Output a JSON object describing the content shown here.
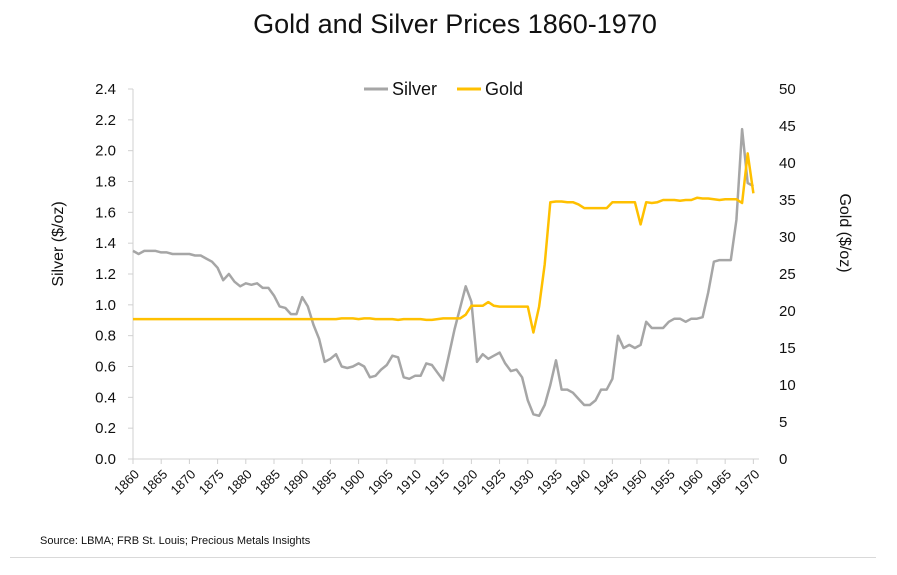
{
  "chart_data": {
    "type": "line",
    "title": "Gold and Silver Prices 1860-1970",
    "ylabel_left": "Silver ($/oz)",
    "ylabel_right": "Gold ($/oz)",
    "ylim_left": [
      0,
      2.4
    ],
    "ylim_right": [
      0,
      50
    ],
    "xlim": [
      1860,
      1971
    ],
    "yticks_left": [
      "0.0",
      "0.2",
      "0.4",
      "0.6",
      "0.8",
      "1.0",
      "1.2",
      "1.4",
      "1.6",
      "1.8",
      "2.0",
      "2.2",
      "2.4"
    ],
    "yticks_right": [
      "0",
      "5",
      "10",
      "15",
      "20",
      "25",
      "30",
      "35",
      "40",
      "45",
      "50"
    ],
    "xticks": [
      "1860",
      "1865",
      "1870",
      "1875",
      "1880",
      "1885",
      "1890",
      "1895",
      "1900",
      "1905",
      "1910",
      "1915",
      "1920",
      "1925",
      "1930",
      "1935",
      "1940",
      "1945",
      "1950",
      "1955",
      "1960",
      "1965",
      "1970"
    ],
    "legend_position": "top-center",
    "grid": false,
    "source": "Source: LBMA; FRB St. Louis; Precious Metals Insights",
    "series": [
      {
        "name": "Silver",
        "axis": "left",
        "color": "#a6a6a6",
        "x": [
          1860,
          1861,
          1862,
          1863,
          1864,
          1865,
          1866,
          1867,
          1868,
          1869,
          1870,
          1871,
          1872,
          1873,
          1874,
          1875,
          1876,
          1877,
          1878,
          1879,
          1880,
          1881,
          1882,
          1883,
          1884,
          1885,
          1886,
          1887,
          1888,
          1889,
          1890,
          1891,
          1892,
          1893,
          1894,
          1895,
          1896,
          1897,
          1898,
          1899,
          1900,
          1901,
          1902,
          1903,
          1904,
          1905,
          1906,
          1907,
          1908,
          1909,
          1910,
          1911,
          1912,
          1913,
          1914,
          1915,
          1916,
          1917,
          1918,
          1919,
          1920,
          1921,
          1922,
          1923,
          1924,
          1925,
          1926,
          1927,
          1928,
          1929,
          1930,
          1931,
          1932,
          1933,
          1934,
          1935,
          1936,
          1937,
          1938,
          1939,
          1940,
          1941,
          1942,
          1943,
          1944,
          1945,
          1946,
          1947,
          1948,
          1949,
          1950,
          1951,
          1952,
          1953,
          1954,
          1955,
          1956,
          1957,
          1958,
          1959,
          1960,
          1961,
          1962,
          1963,
          1964,
          1965,
          1966,
          1967,
          1968,
          1969,
          1970
        ],
        "y": [
          1.35,
          1.33,
          1.35,
          1.35,
          1.35,
          1.34,
          1.34,
          1.33,
          1.33,
          1.33,
          1.33,
          1.32,
          1.32,
          1.3,
          1.28,
          1.24,
          1.16,
          1.2,
          1.15,
          1.12,
          1.14,
          1.13,
          1.14,
          1.11,
          1.11,
          1.06,
          0.99,
          0.98,
          0.94,
          0.94,
          1.05,
          0.99,
          0.87,
          0.78,
          0.63,
          0.65,
          0.68,
          0.6,
          0.59,
          0.6,
          0.62,
          0.6,
          0.53,
          0.54,
          0.58,
          0.61,
          0.67,
          0.66,
          0.53,
          0.52,
          0.54,
          0.54,
          0.62,
          0.61,
          0.56,
          0.51,
          0.67,
          0.84,
          0.98,
          1.12,
          1.02,
          0.63,
          0.68,
          0.65,
          0.67,
          0.69,
          0.62,
          0.57,
          0.58,
          0.53,
          0.38,
          0.29,
          0.28,
          0.35,
          0.48,
          0.64,
          0.45,
          0.45,
          0.43,
          0.39,
          0.35,
          0.35,
          0.38,
          0.45,
          0.45,
          0.52,
          0.8,
          0.72,
          0.74,
          0.72,
          0.74,
          0.89,
          0.85,
          0.85,
          0.85,
          0.89,
          0.91,
          0.91,
          0.89,
          0.91,
          0.91,
          0.92,
          1.08,
          1.28,
          1.29,
          1.29,
          1.29,
          1.55,
          2.14,
          1.79,
          1.77
        ]
      },
      {
        "name": "Gold",
        "axis": "right",
        "color": "#ffc000",
        "x": [
          1860,
          1861,
          1862,
          1863,
          1864,
          1865,
          1866,
          1867,
          1868,
          1869,
          1870,
          1871,
          1872,
          1873,
          1874,
          1875,
          1876,
          1877,
          1878,
          1879,
          1880,
          1881,
          1882,
          1883,
          1884,
          1885,
          1886,
          1887,
          1888,
          1889,
          1890,
          1891,
          1892,
          1893,
          1894,
          1895,
          1896,
          1897,
          1898,
          1899,
          1900,
          1901,
          1902,
          1903,
          1904,
          1905,
          1906,
          1907,
          1908,
          1909,
          1910,
          1911,
          1912,
          1913,
          1914,
          1915,
          1916,
          1917,
          1918,
          1919,
          1920,
          1921,
          1922,
          1923,
          1924,
          1925,
          1926,
          1927,
          1928,
          1929,
          1930,
          1931,
          1932,
          1933,
          1934,
          1935,
          1936,
          1937,
          1938,
          1939,
          1940,
          1941,
          1942,
          1943,
          1944,
          1945,
          1946,
          1947,
          1948,
          1949,
          1950,
          1951,
          1952,
          1953,
          1954,
          1955,
          1956,
          1957,
          1958,
          1959,
          1960,
          1961,
          1962,
          1963,
          1964,
          1965,
          1966,
          1967,
          1968,
          1969,
          1970
        ],
        "y": [
          18.9,
          18.9,
          18.9,
          18.9,
          18.9,
          18.9,
          18.9,
          18.9,
          18.9,
          18.9,
          18.9,
          18.9,
          18.9,
          18.9,
          18.9,
          18.9,
          18.9,
          18.9,
          18.9,
          18.9,
          18.9,
          18.9,
          18.9,
          18.9,
          18.9,
          18.9,
          18.9,
          18.9,
          18.9,
          18.9,
          18.9,
          18.9,
          18.9,
          18.9,
          18.9,
          18.9,
          18.9,
          19.0,
          19.0,
          19.0,
          18.9,
          19.0,
          19.0,
          18.9,
          18.9,
          18.9,
          18.9,
          18.8,
          18.9,
          18.9,
          18.9,
          18.9,
          18.8,
          18.8,
          18.9,
          19.0,
          19.0,
          19.0,
          19.0,
          19.5,
          20.7,
          20.7,
          20.7,
          21.2,
          20.7,
          20.6,
          20.6,
          20.6,
          20.6,
          20.6,
          20.6,
          17.1,
          20.6,
          26.3,
          34.7,
          34.8,
          34.8,
          34.7,
          34.7,
          34.4,
          33.9,
          33.9,
          33.9,
          33.9,
          33.9,
          34.7,
          34.7,
          34.7,
          34.7,
          34.7,
          31.7,
          34.7,
          34.6,
          34.7,
          35.0,
          35.0,
          35.0,
          34.9,
          35.0,
          35.0,
          35.3,
          35.2,
          35.2,
          35.1,
          35.0,
          35.1,
          35.1,
          35.1,
          34.6,
          41.3,
          35.9
        ]
      }
    ]
  }
}
